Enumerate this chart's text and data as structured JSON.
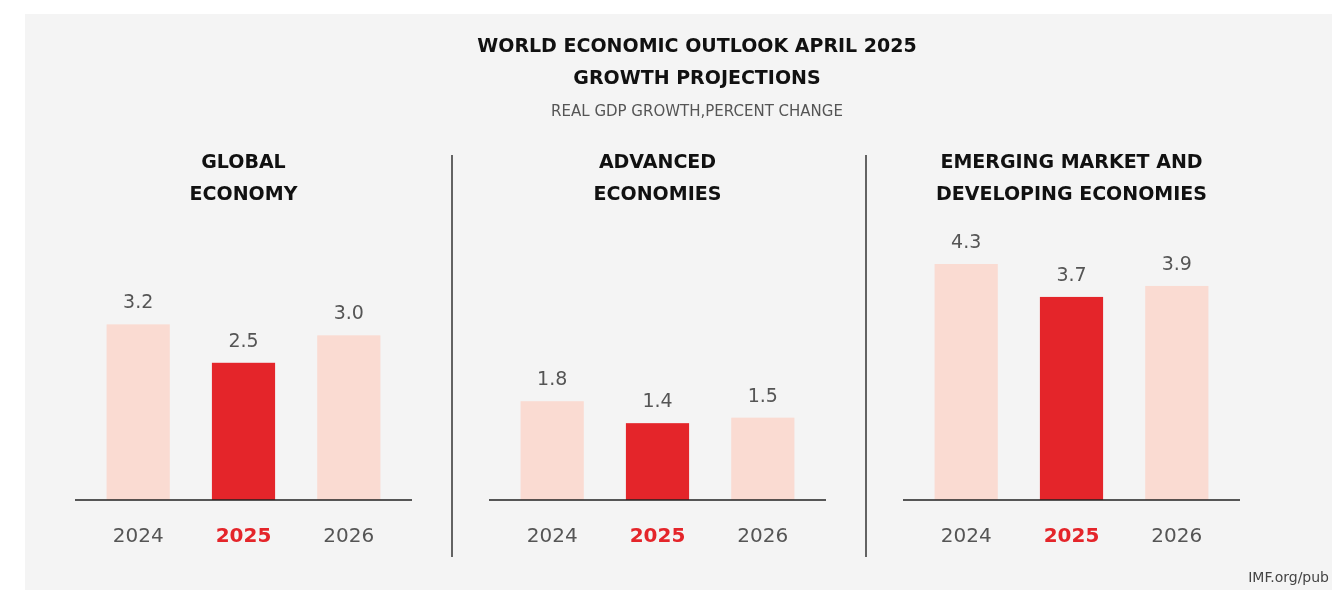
{
  "chart_data": [
    {
      "type": "other",
      "title": "WORLD ECONOMIC OUTLOOK APRIL 2025\nGROWTH PROJECTIONS",
      "subtitle": "REAL GDP GROWTH,PERCENT CHANGE",
      "annotations": [
        "IMF.org/pub"
      ]
    },
    {
      "type": "bar",
      "title": "GLOBAL\nECONOMY",
      "categories": [
        "2024",
        "2025",
        "2026"
      ],
      "values": [
        3.2,
        2.5,
        3.0
      ],
      "value_labels": [
        "3.2",
        "2.5",
        "3.0"
      ],
      "colors": [
        "#fadbd2",
        "#e4252a",
        "#fadbd2"
      ]
    },
    {
      "type": "bar",
      "title": "ADVANCED\nECONOMIES",
      "categories": [
        "2024",
        "2025",
        "2026"
      ],
      "values": [
        1.8,
        1.4,
        1.5
      ],
      "value_labels": [
        "1.8",
        "1.4",
        "1.5"
      ],
      "colors": [
        "#fadbd2",
        "#e4252a",
        "#fadbd2"
      ]
    },
    {
      "type": "bar",
      "title": "EMERGING MARKET AND\nDEVELOPING ECONOMIES",
      "categories": [
        "2024",
        "2025",
        "2026"
      ],
      "values": [
        4.3,
        3.7,
        3.9
      ],
      "value_labels": [
        "4.3",
        "3.7",
        "3.9"
      ],
      "colors": [
        "#fadbd2",
        "#e4252a",
        "#fadbd2"
      ]
    }
  ]
}
